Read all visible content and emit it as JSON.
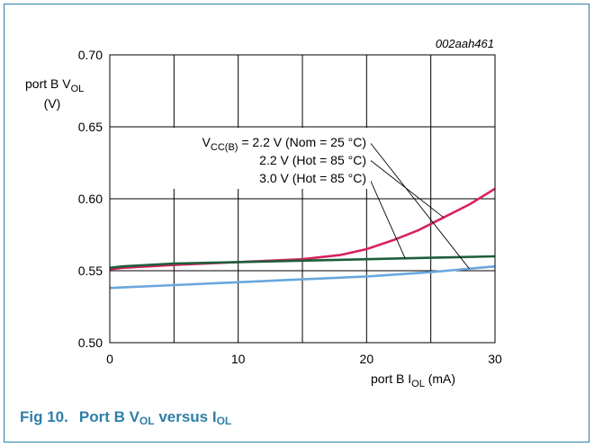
{
  "figure": {
    "number": "Fig 10.",
    "caption": {
      "main": "Port B V",
      "sub1": "OL",
      "mid": " versus I",
      "sub2": "OL"
    },
    "ref_code": "002aah461",
    "accent_color": "#2f7fa7"
  },
  "chart_data": {
    "type": "line",
    "ylabel": {
      "line1_main": "port B V",
      "line1_sub": "OL",
      "line2": "(V)"
    },
    "xlabel": {
      "main": "port B I",
      "sub": "OL",
      "suffix": " (mA)"
    },
    "xlim": [
      0,
      30
    ],
    "ylim": [
      0.5,
      0.7
    ],
    "x_ticks": [
      "0",
      "10",
      "20",
      "30"
    ],
    "y_ticks": [
      "0.50",
      "0.55",
      "0.60",
      "0.65",
      "0.70"
    ],
    "x_grid": [
      0,
      5,
      10,
      15,
      20,
      25,
      30
    ],
    "y_grid": [
      0.5,
      0.55,
      0.6,
      0.65,
      0.7
    ],
    "grid": true,
    "annotations": [
      {
        "prefix": "V",
        "sub": "CC(B)",
        "text": " = 2.2 V (Nom = 25 °C)"
      },
      {
        "prefix": "",
        "sub": "",
        "text": "2.2 V (Hot = 85 °C)"
      },
      {
        "prefix": "",
        "sub": "",
        "text": "3.0 V (Hot = 85 °C)"
      }
    ],
    "series": [
      {
        "color": "#6aa7dc",
        "x": [
          0,
          5,
          10,
          15,
          20,
          25,
          30
        ],
        "y": [
          0.538,
          0.54,
          0.542,
          0.544,
          0.546,
          0.549,
          0.553
        ]
      },
      {
        "color": "#d8225a",
        "x": [
          0,
          1,
          5,
          10,
          15,
          18,
          20,
          22,
          24,
          26,
          28,
          30
        ],
        "y": [
          0.551,
          0.552,
          0.554,
          0.556,
          0.558,
          0.561,
          0.565,
          0.571,
          0.578,
          0.587,
          0.596,
          0.607
        ]
      },
      {
        "color": "#1e5e3a",
        "x": [
          0,
          1,
          5,
          10,
          15,
          20,
          25,
          30
        ],
        "y": [
          0.552,
          0.553,
          0.555,
          0.556,
          0.557,
          0.558,
          0.559,
          0.56
        ]
      }
    ],
    "pointers": [
      {
        "annotation": 0,
        "series": 0,
        "x": 28.0
      },
      {
        "annotation": 1,
        "series": 1,
        "x": 26.0
      },
      {
        "annotation": 2,
        "series": 2,
        "x": 23.0
      }
    ]
  }
}
